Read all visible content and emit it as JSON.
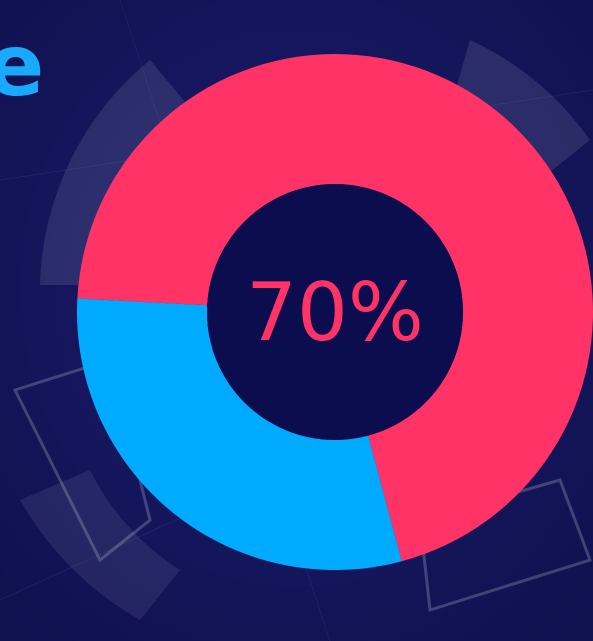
{
  "header": {
    "title": "e"
  },
  "chart_data": {
    "type": "donut",
    "values": [
      70,
      30
    ],
    "value_labels": [
      "70%",
      null
    ],
    "colors": [
      "#ff3366",
      "#00aaff"
    ],
    "label_color": "#ff3366",
    "hole_color": "#0c0d4f"
  }
}
